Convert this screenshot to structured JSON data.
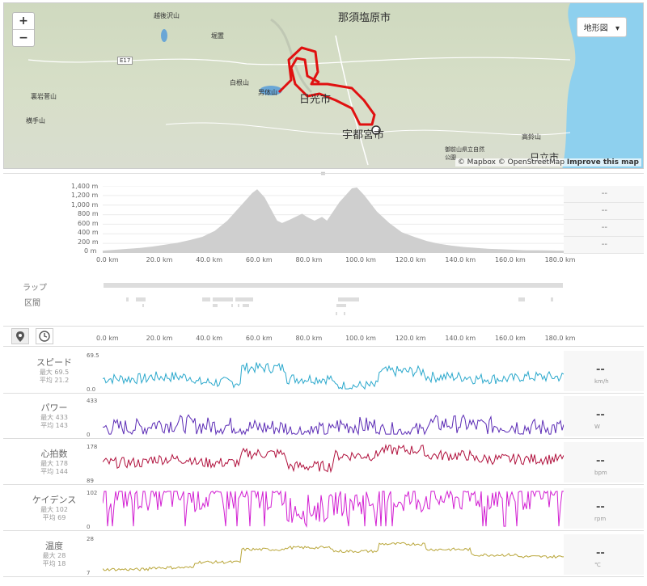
{
  "map": {
    "zoom_in": "+",
    "zoom_out": "−",
    "layer_button": "地形図",
    "attribution": "© Mapbox © OpenStreetMap",
    "improve": "Improve this map",
    "labels": [
      "那須塩原市",
      "日光市",
      "宇都宮市",
      "日立市",
      "越後沢山",
      "堀置",
      "白根山",
      "男体山",
      "裏岩菅山",
      "横手山",
      "高鈴山",
      "E17",
      "御前山県立自然公園"
    ]
  },
  "elevation": {
    "y_ticks": [
      "1,400 m",
      "1,200 m",
      "1,000 m",
      "800 m",
      "600 m",
      "400 m",
      "200 m",
      "0 m"
    ],
    "x_ticks": [
      "0.0 km",
      "20.0 km",
      "40.0 km",
      "60.0 km",
      "80.0 km",
      "100.0 km",
      "120.0 km",
      "140.0 km",
      "160.0 km",
      "180.0 km"
    ],
    "side_values": [
      "--",
      "--",
      "--",
      "--"
    ],
    "profile_km": [
      0,
      5,
      10,
      15,
      20,
      25,
      30,
      35,
      40,
      45,
      50,
      55,
      60,
      62,
      65,
      70,
      72,
      75,
      80,
      82,
      85,
      88,
      90,
      95,
      100,
      102,
      105,
      110,
      115,
      120,
      125,
      130,
      135,
      140,
      145,
      150,
      155,
      160,
      165,
      170,
      175,
      180,
      185
    ],
    "profile_m": [
      50,
      70,
      90,
      110,
      140,
      180,
      220,
      280,
      350,
      480,
      700,
      1000,
      1300,
      1380,
      1200,
      700,
      650,
      720,
      850,
      780,
      700,
      780,
      700,
      1100,
      1400,
      1420,
      1250,
      900,
      650,
      450,
      350,
      260,
      200,
      160,
      130,
      110,
      90,
      80,
      70,
      60,
      60,
      55,
      50
    ],
    "distance_max_km": 185,
    "elev_max_m": 1400,
    "row_labels": [
      "ラップ",
      "区間"
    ]
  },
  "view_toggle": {
    "distance_icon": "map-pin-icon",
    "time_icon": "clock-icon"
  },
  "metrics": [
    {
      "title": "スピード",
      "max": "最大 69.5",
      "avg": "平均 21.2",
      "top": "69.5",
      "bottom": "0.0",
      "value": "--",
      "unit": "km/h",
      "color": "#2aa8cc"
    },
    {
      "title": "パワー",
      "max": "最大 433",
      "avg": "平均 143",
      "top": "433",
      "bottom": "0",
      "value": "--",
      "unit": "W",
      "color": "#5b2bb5"
    },
    {
      "title": "心拍数",
      "max": "最大 178",
      "avg": "平均 144",
      "top": "178",
      "bottom": "89",
      "value": "--",
      "unit": "bpm",
      "color": "#b0103c"
    },
    {
      "title": "ケイデンス",
      "max": "最大 102",
      "avg": "平均 69",
      "top": "102",
      "bottom": "0",
      "value": "--",
      "unit": "rpm",
      "color": "#d21ed2"
    },
    {
      "title": "温度",
      "max": "最大 28",
      "avg": "平均 18",
      "top": "28",
      "bottom": "7",
      "value": "--",
      "unit": "℃",
      "color": "#b9a63a"
    }
  ]
}
